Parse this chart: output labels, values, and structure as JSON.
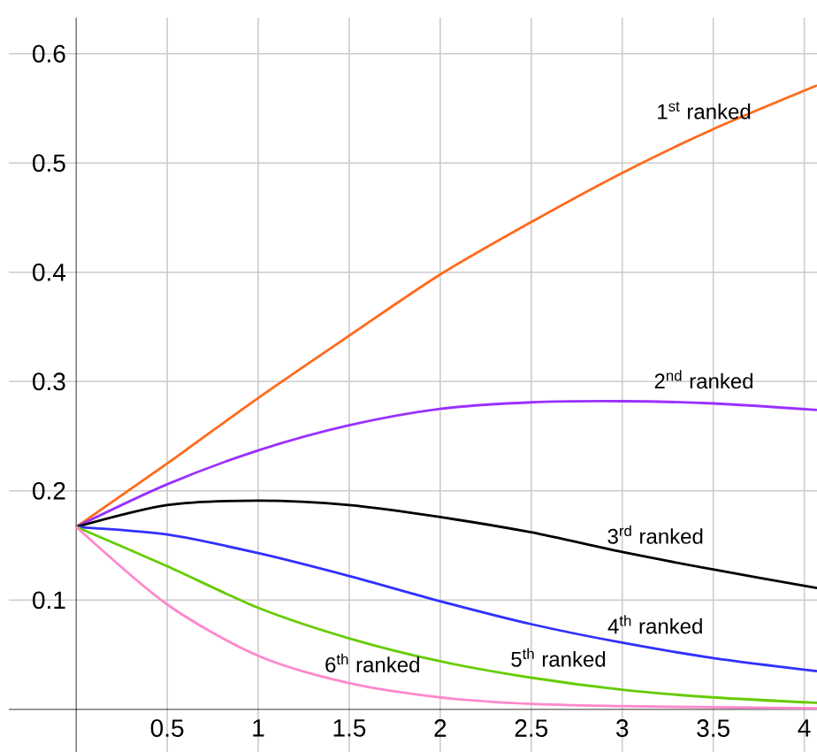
{
  "chart_data": {
    "type": "line",
    "x": [
      0,
      0.5,
      1,
      1.5,
      2,
      2.5,
      3,
      3.5,
      4.07
    ],
    "series": [
      {
        "name": "1$^{st}$ ranked",
        "color": "#ff6a1a",
        "values": [
          0.167,
          0.225,
          0.285,
          0.342,
          0.398,
          0.446,
          0.491,
          0.531,
          0.571
        ]
      },
      {
        "name": "2$^{nd}$ ranked",
        "color": "#9b30ff",
        "values": [
          0.167,
          0.206,
          0.237,
          0.26,
          0.275,
          0.281,
          0.282,
          0.28,
          0.274
        ]
      },
      {
        "name": "3$^{rd}$ ranked",
        "color": "#000000",
        "values": [
          0.167,
          0.187,
          0.191,
          0.187,
          0.176,
          0.162,
          0.144,
          0.128,
          0.111
        ]
      },
      {
        "name": "4$^{th}$ ranked",
        "color": "#3030ff",
        "values": [
          0.167,
          0.16,
          0.143,
          0.122,
          0.099,
          0.078,
          0.061,
          0.047,
          0.035
        ]
      },
      {
        "name": "5$^{th}$ ranked",
        "color": "#66cc00",
        "values": [
          0.167,
          0.131,
          0.093,
          0.065,
          0.044,
          0.029,
          0.018,
          0.011,
          0.006
        ]
      },
      {
        "name": "6$^{th}$ ranked",
        "color": "#ff88cc",
        "values": [
          0.167,
          0.096,
          0.049,
          0.024,
          0.011,
          0.005,
          0.003,
          0.002,
          0.001
        ]
      }
    ],
    "xlim": [
      -0.37,
      4.07
    ],
    "ylim": [
      -0.039,
      0.633
    ],
    "xticks": [
      0.5,
      1,
      1.5,
      2,
      2.5,
      3,
      3.5,
      4
    ],
    "yticks": [
      0.1,
      0.2,
      0.3,
      0.4,
      0.5,
      0.6
    ],
    "grid": true,
    "marker": "none",
    "line_style": "solid"
  }
}
